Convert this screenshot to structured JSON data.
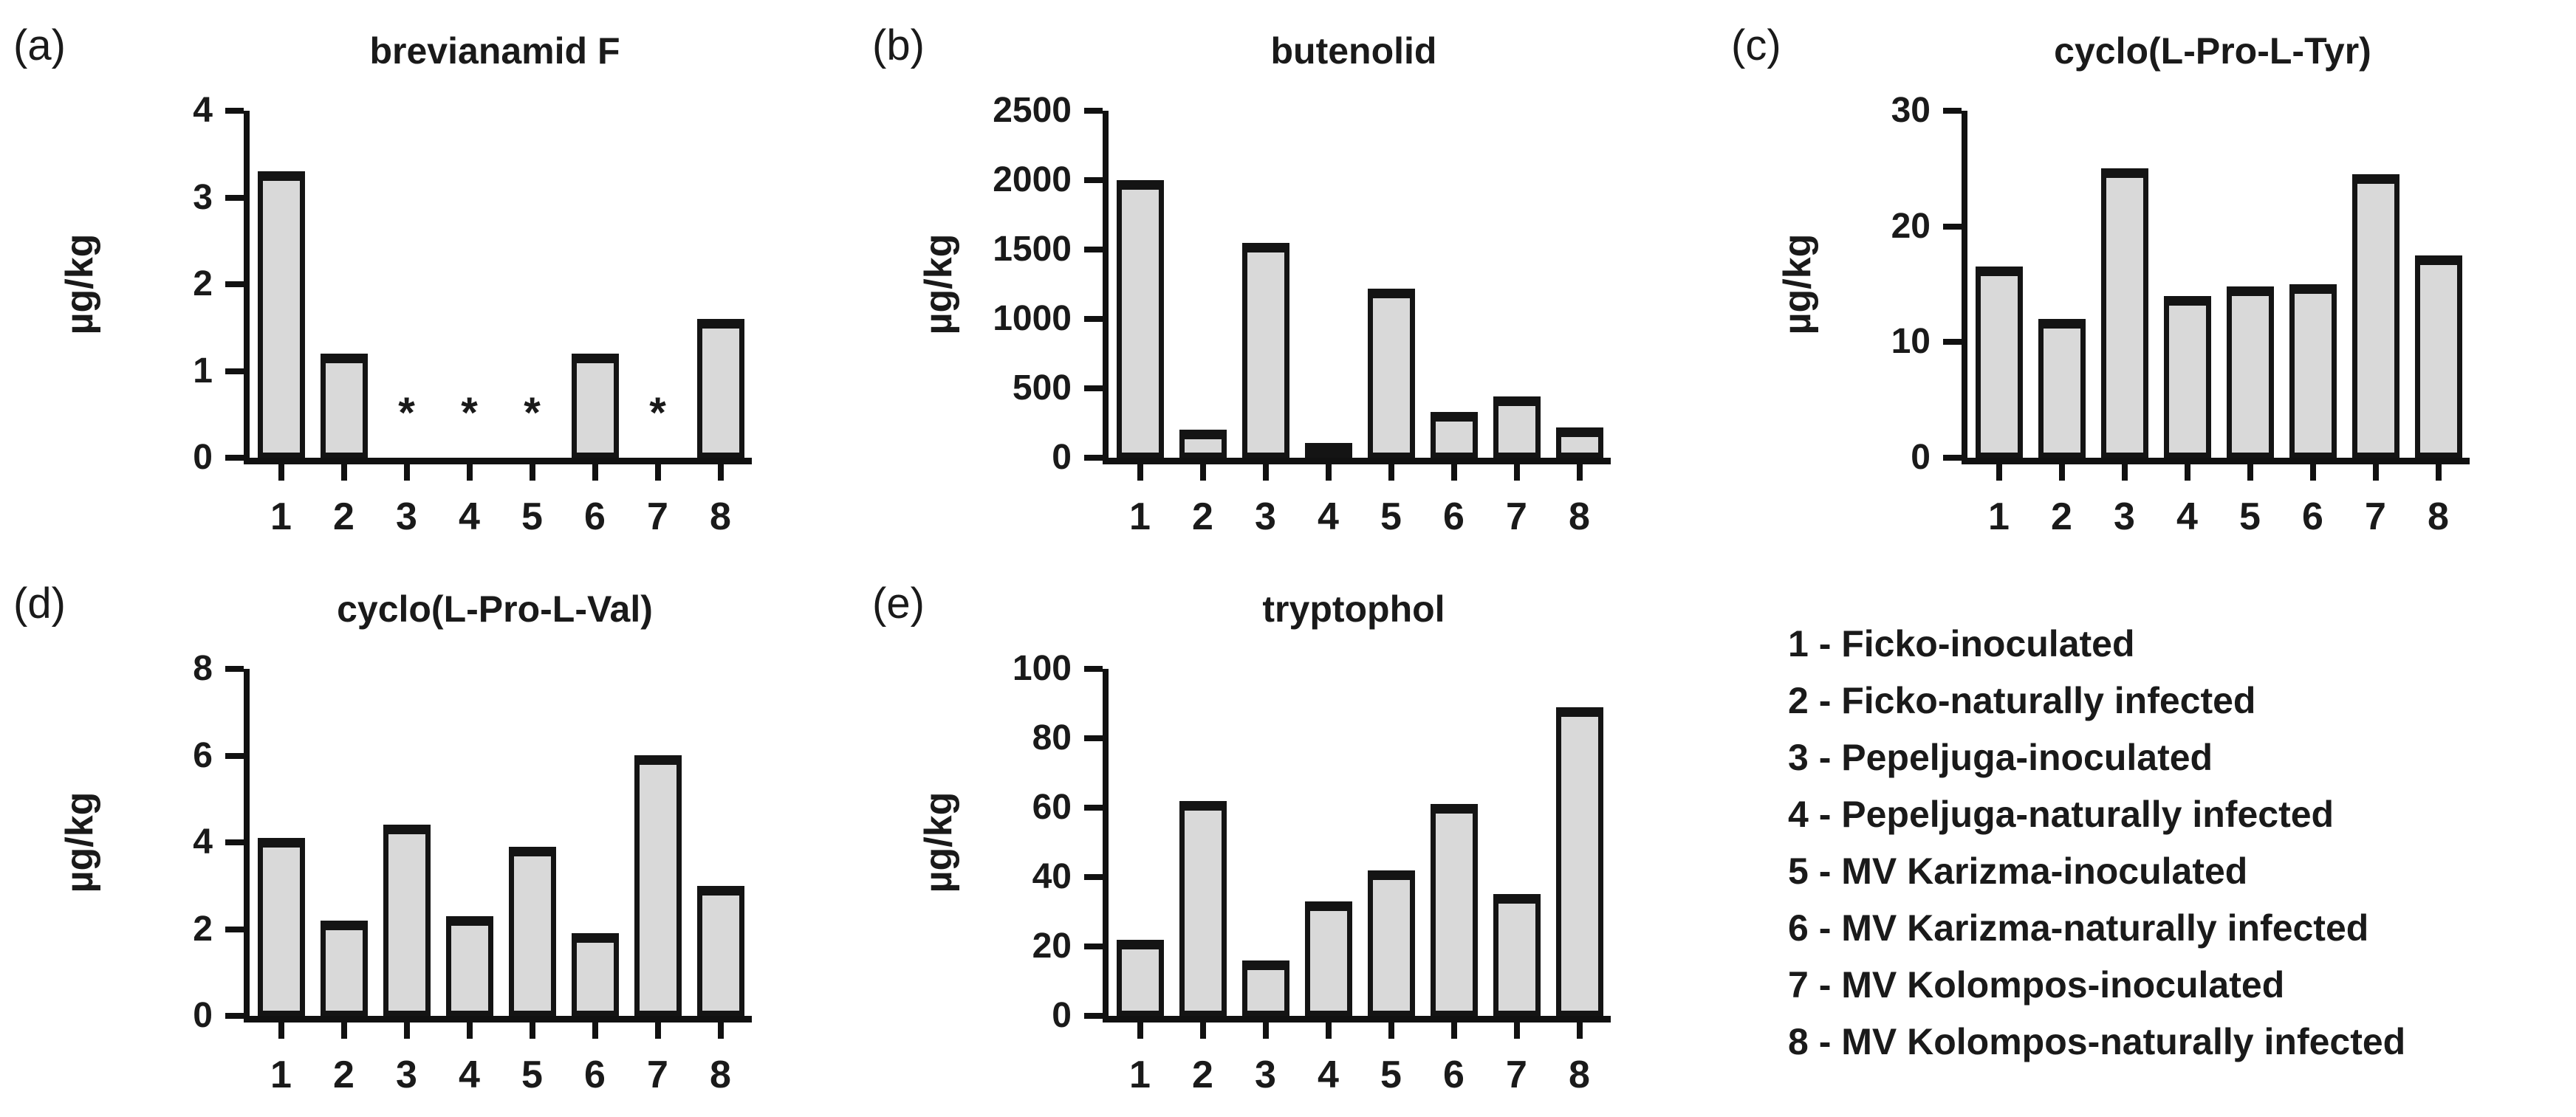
{
  "figure": {
    "background": "#ffffff",
    "bar_fill": "#d9d9d9",
    "line_color": "#111111"
  },
  "chart_data": [
    {
      "type": "bar",
      "panel_label": "(a)",
      "title": "brevianamid F",
      "ylabel": "µg/kg",
      "categories": [
        "1",
        "2",
        "3",
        "4",
        "5",
        "6",
        "7",
        "8"
      ],
      "values": [
        3.3,
        1.2,
        0,
        0,
        0,
        1.2,
        0,
        1.6
      ],
      "yticks": [
        0,
        1,
        2,
        3,
        4
      ],
      "ylim": [
        0,
        4
      ],
      "grid": "off",
      "annotations": [
        {
          "category": "3",
          "text": "*"
        },
        {
          "category": "4",
          "text": "*"
        },
        {
          "category": "5",
          "text": "*"
        },
        {
          "category": "7",
          "text": "*"
        }
      ],
      "annotation_y": 0.7
    },
    {
      "type": "bar",
      "panel_label": "(b)",
      "title": "butenolid",
      "ylabel": "µg/kg",
      "categories": [
        "1",
        "2",
        "3",
        "4",
        "5",
        "6",
        "7",
        "8"
      ],
      "values": [
        2000,
        200,
        1550,
        100,
        1220,
        330,
        440,
        220
      ],
      "yticks": [
        0,
        500,
        1000,
        1500,
        2000,
        2500
      ],
      "ylim": [
        0,
        2500
      ],
      "grid": "off",
      "annotations": [],
      "annotation_y": null
    },
    {
      "type": "bar",
      "panel_label": "(c)",
      "title": "cyclo(L-Pro-L-Tyr)",
      "ylabel": "µg/kg",
      "categories": [
        "1",
        "2",
        "3",
        "4",
        "5",
        "6",
        "7",
        "8"
      ],
      "values": [
        16.5,
        12,
        25,
        14,
        14.8,
        15,
        24.5,
        17.5
      ],
      "yticks": [
        0,
        10,
        20,
        30
      ],
      "ylim": [
        0,
        30
      ],
      "grid": "off",
      "annotations": [],
      "annotation_y": null
    },
    {
      "type": "bar",
      "panel_label": "(d)",
      "title": "cyclo(L-Pro-L-Val)",
      "ylabel": "µg/kg",
      "categories": [
        "1",
        "2",
        "3",
        "4",
        "5",
        "6",
        "7",
        "8"
      ],
      "values": [
        4.1,
        2.2,
        4.4,
        2.3,
        3.9,
        1.9,
        6.0,
        3.0
      ],
      "yticks": [
        0,
        2,
        4,
        6,
        8
      ],
      "ylim": [
        0,
        8
      ],
      "grid": "off",
      "annotations": [],
      "annotation_y": null
    },
    {
      "type": "bar",
      "panel_label": "(e)",
      "title": "tryptophol",
      "ylabel": "µg/kg",
      "categories": [
        "1",
        "2",
        "3",
        "4",
        "5",
        "6",
        "7",
        "8"
      ],
      "values": [
        22,
        62,
        16,
        33,
        42,
        61,
        35,
        89
      ],
      "yticks": [
        0,
        20,
        40,
        60,
        80,
        100
      ],
      "ylim": [
        0,
        100
      ],
      "grid": "off",
      "annotations": [],
      "annotation_y": null
    }
  ],
  "legend": {
    "items": [
      {
        "label": "1 - Ficko-inoculated"
      },
      {
        "label": "2 - Ficko-naturally infected"
      },
      {
        "label": "3 - Pepeljuga-inoculated"
      },
      {
        "label": "4 - Pepeljuga-naturally infected"
      },
      {
        "label": "5 - MV Karizma-inoculated"
      },
      {
        "label": "6 - MV Karizma-naturally infected"
      },
      {
        "label": "7 - MV Kolompos-inoculated"
      },
      {
        "label": "8 - MV Kolompos-naturally infected"
      }
    ]
  }
}
